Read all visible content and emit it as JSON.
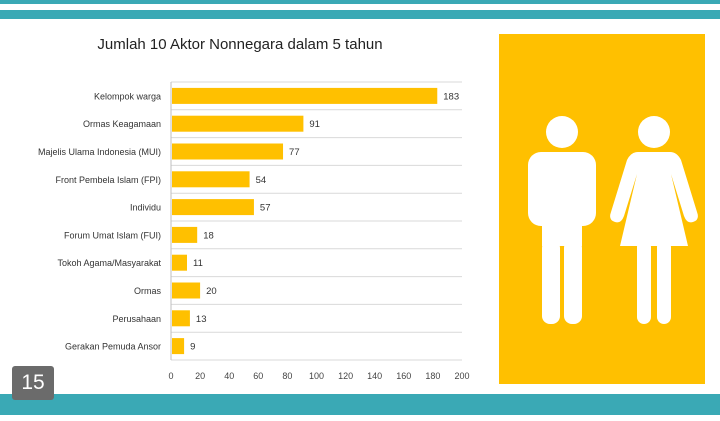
{
  "slide": {
    "page_number": "15",
    "accent_color": "#3aa9b5",
    "panel_color": "#ffc000",
    "panel_icon": "man-and-woman-restroom-icon"
  },
  "chart_data": {
    "type": "bar",
    "orientation": "horizontal",
    "title": "Jumlah 10 Aktor Nonnegara dalam 5 tahun",
    "xlabel": "",
    "ylabel": "",
    "categories": [
      "Kelompok warga",
      "Ormas Keagamaan",
      "Majelis Ulama Indonesia (MUI)",
      "Front Pembela Islam (FPI)",
      "Individu",
      "Forum Umat Islam (FUI)",
      "Tokoh Agama/Masyarakat",
      "Ormas",
      "Perusahaan",
      "Gerakan Pemuda Ansor"
    ],
    "values": [
      183,
      91,
      77,
      54,
      57,
      18,
      11,
      20,
      13,
      9
    ],
    "xlim": [
      0,
      200
    ],
    "xticks": [
      0,
      20,
      40,
      60,
      80,
      100,
      120,
      140,
      160,
      180,
      200
    ],
    "bar_color": "#ffc000",
    "grid": "horizontal",
    "legend": "none",
    "data_labels": true
  }
}
